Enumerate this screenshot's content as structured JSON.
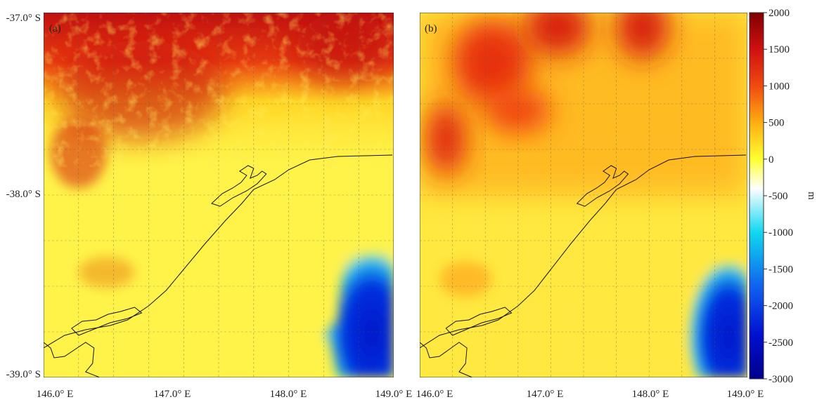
{
  "panels": [
    {
      "label": "(a)",
      "lat_labels": [
        "-37.0° S",
        "-38.0° S",
        "-39.0° S"
      ],
      "lon_labels": [
        "146.0° E",
        "147.0° E",
        "148.0° E",
        "149.0° E"
      ]
    },
    {
      "label": "(b)",
      "lon_labels": [
        "146.0° E",
        "147.0° E",
        "148.0° E",
        "149.0° E"
      ]
    }
  ],
  "colorbar": {
    "unit": "m",
    "lim": [
      -3000,
      2000
    ],
    "ticks": [
      2000,
      1500,
      1000,
      500,
      0,
      -500,
      -1000,
      -1500,
      -2000,
      -2500,
      -3000
    ]
  }
}
